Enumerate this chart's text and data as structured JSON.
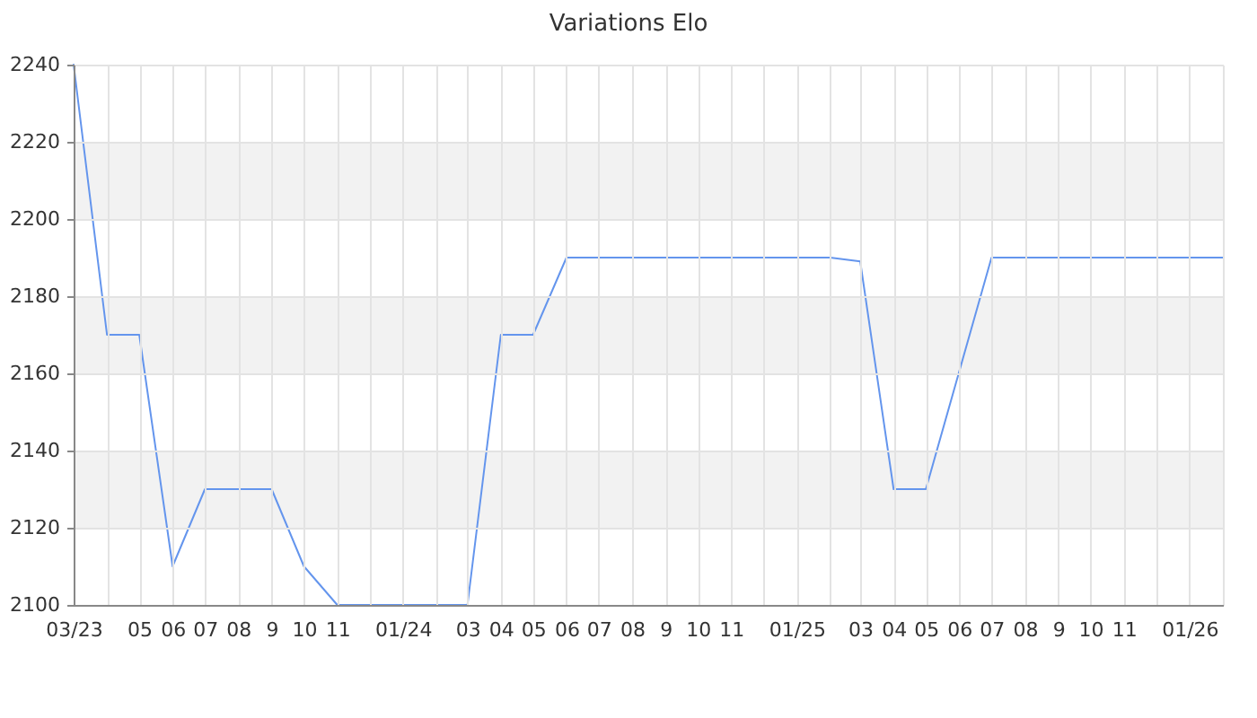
{
  "chart_data": {
    "type": "line",
    "title": "Variations Elo",
    "x": [
      "2023-03",
      "2023-04",
      "2023-05",
      "2023-06",
      "2023-07",
      "2023-08",
      "2023-09",
      "2023-10",
      "2023-11",
      "2023-12",
      "2024-01",
      "2024-02",
      "2024-03",
      "2024-04",
      "2024-05",
      "2024-06",
      "2024-07",
      "2024-08",
      "2024-09",
      "2024-10",
      "2024-11",
      "2024-12",
      "2025-01",
      "2025-02",
      "2025-03",
      "2025-04",
      "2025-05",
      "2025-07",
      "2025-08",
      "2025-09",
      "2025-10",
      "2025-11",
      "2025-12",
      "2026-01",
      "2026-02"
    ],
    "series": [
      {
        "color": "#6495ed",
        "values": [
          2240,
          2170,
          2170,
          2110,
          2130,
          2130,
          2130,
          2110,
          2100,
          2100,
          2100,
          2100,
          2100,
          2170,
          2170,
          2190,
          2190,
          2190,
          2190,
          2190,
          2190,
          2190,
          2190,
          2190,
          2189,
          2130,
          2130,
          2190,
          2190,
          2190,
          2190,
          2190,
          2190,
          2190,
          2190
        ]
      }
    ],
    "xlim": [
      "2023-03",
      "2026-02"
    ],
    "xticks": [
      {
        "value": "2023-03",
        "label": "03/23"
      },
      {
        "value": "2023-04",
        "label": null
      },
      {
        "value": "2023-05",
        "label": "05"
      },
      {
        "value": "2023-06",
        "label": "06"
      },
      {
        "value": "2023-07",
        "label": "07"
      },
      {
        "value": "2023-08",
        "label": "08"
      },
      {
        "value": "2023-09",
        "label": "9"
      },
      {
        "value": "2023-10",
        "label": "10"
      },
      {
        "value": "2023-11",
        "label": "11"
      },
      {
        "value": "2023-12",
        "label": null
      },
      {
        "value": "2024-01",
        "label": "01/24"
      },
      {
        "value": "2024-02",
        "label": null
      },
      {
        "value": "2024-03",
        "label": "03"
      },
      {
        "value": "2024-04",
        "label": "04"
      },
      {
        "value": "2024-05",
        "label": "05"
      },
      {
        "value": "2024-06",
        "label": "06"
      },
      {
        "value": "2024-07",
        "label": "07"
      },
      {
        "value": "2024-08",
        "label": "08"
      },
      {
        "value": "2024-09",
        "label": "9"
      },
      {
        "value": "2024-10",
        "label": "10"
      },
      {
        "value": "2024-11",
        "label": "11"
      },
      {
        "value": "2024-12",
        "label": null
      },
      {
        "value": "2025-01",
        "label": "01/25"
      },
      {
        "value": "2025-02",
        "label": null
      },
      {
        "value": "2025-03",
        "label": "03"
      },
      {
        "value": "2025-04",
        "label": "04"
      },
      {
        "value": "2025-05",
        "label": "05"
      },
      {
        "value": "2025-06",
        "label": "06"
      },
      {
        "value": "2025-07",
        "label": "07"
      },
      {
        "value": "2025-08",
        "label": "08"
      },
      {
        "value": "2025-09",
        "label": "9"
      },
      {
        "value": "2025-10",
        "label": "10"
      },
      {
        "value": "2025-11",
        "label": "11"
      },
      {
        "value": "2025-12",
        "label": null
      },
      {
        "value": "2026-01",
        "label": "01/26"
      },
      {
        "value": "2026-02",
        "label": null
      }
    ],
    "ylim": [
      2100,
      2240
    ],
    "yticks": [
      2100,
      2120,
      2140,
      2160,
      2180,
      2200,
      2220,
      2240
    ],
    "bands": [
      {
        "axis": "y",
        "from": 2120,
        "to": 2140,
        "color": "#f2f2f2"
      },
      {
        "axis": "y",
        "from": 2160,
        "to": 2180,
        "color": "#f2f2f2"
      },
      {
        "axis": "y",
        "from": 2200,
        "to": 2220,
        "color": "#f2f2f2"
      }
    ],
    "grid": true,
    "marker": "none",
    "line_style": "solid"
  }
}
